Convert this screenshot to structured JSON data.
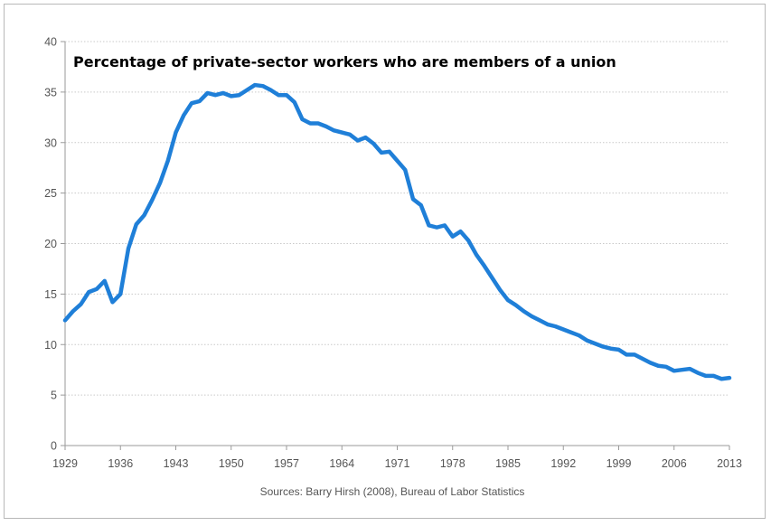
{
  "chart_data": {
    "type": "line",
    "title": "Percentage of private-sector workers who are members of a union",
    "source": "Sources: Barry Hirsh (2008), Bureau of Labor Statistics",
    "xlabel": "",
    "ylabel": "",
    "xlim": [
      1929,
      2013
    ],
    "ylim": [
      0,
      40
    ],
    "grid": true,
    "line_color": "#1f7fd8",
    "x_tick_labels": [
      "1929",
      "1936",
      "1943",
      "1950",
      "1957",
      "1964",
      "1971",
      "1978",
      "1985",
      "1992",
      "1999",
      "2006",
      "2013"
    ],
    "y_tick_labels": [
      "0",
      "5",
      "10",
      "15",
      "20",
      "25",
      "30",
      "35",
      "40"
    ],
    "series": [
      {
        "x": [
          1929,
          1930,
          1931,
          1932,
          1933,
          1934,
          1935,
          1936,
          1937,
          1938,
          1939,
          1940,
          1941,
          1942,
          1943,
          1944,
          1945,
          1946,
          1947,
          1948,
          1949,
          1950,
          1951,
          1952,
          1953,
          1954,
          1955,
          1956,
          1957,
          1958,
          1959,
          1960,
          1961,
          1962,
          1963,
          1964,
          1965,
          1966,
          1967,
          1968,
          1969,
          1970,
          1971,
          1972,
          1973,
          1974,
          1975,
          1976,
          1977,
          1978,
          1979,
          1980,
          1981,
          1982,
          1983,
          1984,
          1985,
          1986,
          1987,
          1988,
          1989,
          1990,
          1991,
          1992,
          1993,
          1994,
          1995,
          1996,
          1997,
          1998,
          1999,
          2000,
          2001,
          2002,
          2003,
          2004,
          2005,
          2006,
          2007,
          2008,
          2009,
          2010,
          2011,
          2012,
          2013
        ],
        "y": [
          12.4,
          13.3,
          14.0,
          15.2,
          15.5,
          16.3,
          14.2,
          15.0,
          19.5,
          21.9,
          22.8,
          24.3,
          26.0,
          28.2,
          31.0,
          32.7,
          33.9,
          34.1,
          34.9,
          34.7,
          34.9,
          34.6,
          34.7,
          35.2,
          35.7,
          35.6,
          35.2,
          34.7,
          34.7,
          34.0,
          32.3,
          31.9,
          31.9,
          31.6,
          31.2,
          31.0,
          30.8,
          30.2,
          30.5,
          29.9,
          29.0,
          29.1,
          28.2,
          27.3,
          24.4,
          23.8,
          21.8,
          21.6,
          21.8,
          20.7,
          21.2,
          20.3,
          18.9,
          17.8,
          16.6,
          15.4,
          14.4,
          13.9,
          13.3,
          12.8,
          12.4,
          12.0,
          11.8,
          11.5,
          11.2,
          10.9,
          10.4,
          10.1,
          9.8,
          9.6,
          9.5,
          9.0,
          9.0,
          8.6,
          8.2,
          7.9,
          7.8,
          7.4,
          7.5,
          7.6,
          7.2,
          6.9,
          6.9,
          6.6,
          6.7
        ]
      }
    ]
  }
}
